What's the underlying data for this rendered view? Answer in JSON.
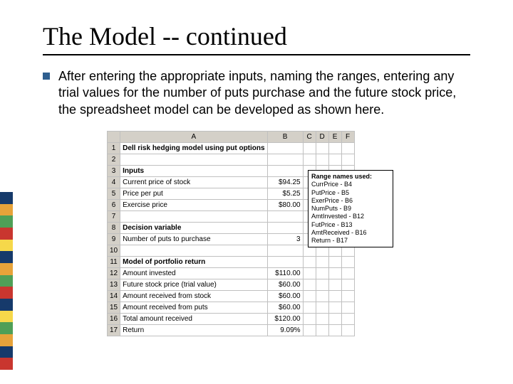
{
  "title": "The Model -- continued",
  "bullet_text": "After entering the appropriate inputs, naming the ranges, entering any trial values for the number of puts purchase and the future stock price, the spreadsheet model can be developed as shown here.",
  "colors": {
    "bullet": "#2f5f8f",
    "header_bg": "#d4d0c8",
    "grid": "#c0c0c0",
    "stripes": [
      "#163a6b",
      "#e7a33a",
      "#4f9f57",
      "#c9362f",
      "#f6d84a",
      "#163a6b",
      "#e7a33a",
      "#4f9f57",
      "#c9362f",
      "#163a6b",
      "#f6d84a",
      "#4f9f57",
      "#e7a33a",
      "#163a6b",
      "#c9362f"
    ]
  },
  "sheet": {
    "columns": [
      "",
      "A",
      "B",
      "C",
      "D",
      "E",
      "F"
    ],
    "rows": [
      {
        "n": "1",
        "a": "Dell risk hedging model using put options",
        "b": "",
        "bold": true
      },
      {
        "n": "2",
        "a": "",
        "b": ""
      },
      {
        "n": "3",
        "a": "Inputs",
        "b": "",
        "bold": true
      },
      {
        "n": "4",
        "a": "Current price of stock",
        "b": "$94.25"
      },
      {
        "n": "5",
        "a": "Price per put",
        "b": "$5.25"
      },
      {
        "n": "6",
        "a": "Exercise price",
        "b": "$80.00"
      },
      {
        "n": "7",
        "a": "",
        "b": ""
      },
      {
        "n": "8",
        "a": "Decision variable",
        "b": "",
        "bold": true
      },
      {
        "n": "9",
        "a": "Number of puts to purchase",
        "b": "3"
      },
      {
        "n": "10",
        "a": "",
        "b": ""
      },
      {
        "n": "11",
        "a": "Model of portfolio return",
        "b": "",
        "bold": true
      },
      {
        "n": "12",
        "a": "Amount invested",
        "b": "$110.00"
      },
      {
        "n": "13",
        "a": "Future stock price (trial value)",
        "b": "$60.00"
      },
      {
        "n": "14",
        "a": "Amount received from stock",
        "b": "$60.00"
      },
      {
        "n": "15",
        "a": "Amount received from puts",
        "b": "$60.00"
      },
      {
        "n": "16",
        "a": "Total amount received",
        "b": "$120.00"
      },
      {
        "n": "17",
        "a": "Return",
        "b": "9.09%"
      }
    ]
  },
  "range_box": {
    "header": "Range names used:",
    "lines": [
      "CurrPrice - B4",
      "PutPrice - B5",
      "ExerPrice - B6",
      "NumPuts - B9",
      "AmtInvested - B12",
      "FutPrice - B13",
      "AmtReceived - B16",
      "Return - B17"
    ]
  }
}
